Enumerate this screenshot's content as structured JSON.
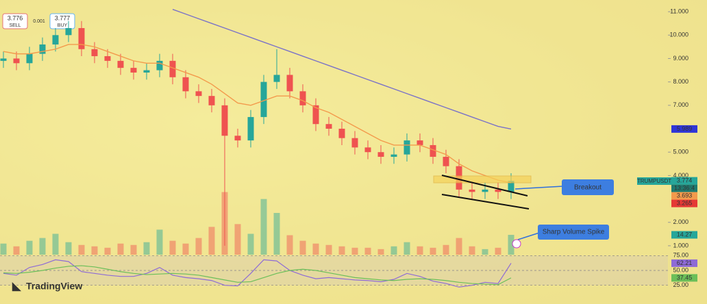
{
  "chart_data": [
    {
      "type": "candlestick",
      "open": [
        8.9,
        9.0,
        8.8,
        9.2,
        9.6,
        10.0,
        10.3,
        9.4,
        9.1,
        8.9,
        8.6,
        8.4,
        8.5,
        8.9,
        8.2,
        7.6,
        7.4,
        7.0,
        5.7,
        5.5,
        6.5,
        8.0,
        8.3,
        7.6,
        7.0,
        6.2,
        6.0,
        5.6,
        5.2,
        5.0,
        4.8,
        4.9,
        5.5,
        5.3,
        4.8,
        4.4,
        3.4,
        3.3,
        3.4,
        3.3
      ],
      "high": [
        9.3,
        9.3,
        9.5,
        9.9,
        10.3,
        10.6,
        10.6,
        9.7,
        9.4,
        9.2,
        8.9,
        8.8,
        9.2,
        9.2,
        8.5,
        7.9,
        7.7,
        7.3,
        6.0,
        6.8,
        8.3,
        9.4,
        8.6,
        7.9,
        7.3,
        6.5,
        6.3,
        5.9,
        5.5,
        5.3,
        5.2,
        5.8,
        5.8,
        5.6,
        5.1,
        4.7,
        3.7,
        3.7,
        3.7,
        4.1
      ],
      "low": [
        8.6,
        8.5,
        8.5,
        8.9,
        9.3,
        9.7,
        9.1,
        8.8,
        8.6,
        8.3,
        8.1,
        8.1,
        8.2,
        7.9,
        7.3,
        7.1,
        6.7,
        1.0,
        5.2,
        5.2,
        6.2,
        7.7,
        7.3,
        6.7,
        5.9,
        5.7,
        5.3,
        4.9,
        4.7,
        4.5,
        4.5,
        4.6,
        5.0,
        4.5,
        4.1,
        3.1,
        3.0,
        3.0,
        3.0,
        3.0
      ],
      "close": [
        9.0,
        8.8,
        9.2,
        9.6,
        10.0,
        10.3,
        9.4,
        9.1,
        8.9,
        8.6,
        8.4,
        8.5,
        8.9,
        8.2,
        7.6,
        7.4,
        7.0,
        5.7,
        5.5,
        6.5,
        8.0,
        8.3,
        7.6,
        7.0,
        6.2,
        6.0,
        5.6,
        5.2,
        5.0,
        4.8,
        4.9,
        5.5,
        5.3,
        4.8,
        4.4,
        3.4,
        3.3,
        3.4,
        3.3,
        3.774
      ],
      "up_color": "#26a69a",
      "down_color": "#ef5350",
      "series": [
        {
          "color": "#f39a4c",
          "values": [
            9.3,
            9.2,
            9.2,
            9.3,
            9.4,
            9.6,
            9.6,
            9.5,
            9.3,
            9.1,
            8.9,
            8.8,
            8.8,
            8.6,
            8.4,
            8.2,
            7.9,
            7.5,
            7.1,
            7.0,
            7.2,
            7.4,
            7.4,
            7.2,
            6.9,
            6.7,
            6.4,
            6.1,
            5.8,
            5.5,
            5.3,
            5.3,
            5.3,
            5.1,
            4.9,
            4.5,
            4.2,
            4.0,
            3.8,
            3.693
          ]
        },
        {
          "color": "#7a72c8",
          "values": [
            null,
            null,
            null,
            null,
            null,
            null,
            null,
            null,
            null,
            null,
            null,
            null,
            null,
            11.1,
            10.9,
            10.7,
            10.5,
            10.3,
            10.1,
            9.9,
            9.7,
            9.5,
            9.3,
            9.1,
            8.9,
            8.7,
            8.5,
            8.3,
            8.1,
            7.9,
            7.7,
            7.5,
            7.3,
            7.1,
            6.9,
            6.7,
            6.5,
            6.3,
            6.1,
            5.989
          ]
        }
      ],
      "ylim": [
        0.53,
        11.5
      ],
      "yticks": [
        {
          "value": 11,
          "label": "11.000"
        },
        {
          "value": 10,
          "label": "10.000"
        },
        {
          "value": 9,
          "label": "9.000"
        },
        {
          "value": 8,
          "label": "8.000"
        },
        {
          "value": 7,
          "label": "7.000"
        },
        {
          "value": 5,
          "label": "5.000"
        },
        {
          "value": 4,
          "label": "4.000"
        },
        {
          "value": 2,
          "label": "2.000"
        },
        {
          "value": 1,
          "label": "1.000"
        }
      ],
      "axis_tags": [
        {
          "value": 5.989,
          "label": "5.989",
          "color": "#2f35d8"
        },
        {
          "value": 3.774,
          "label": "3.774",
          "color": "#26a69a",
          "countdown": "13:36:4"
        },
        {
          "value": 3.693,
          "label": "3.693",
          "color": "#f39a4c"
        },
        {
          "value": 3.265,
          "label": "3.265",
          "color": "#e53935"
        }
      ],
      "symbol": "TRUMPUSDT"
    },
    {
      "type": "bar",
      "values": [
        8,
        6,
        10,
        12,
        15,
        9,
        7,
        6,
        5,
        8,
        7,
        9,
        18,
        10,
        8,
        12,
        20,
        45,
        22,
        15,
        40,
        30,
        14,
        10,
        8,
        7,
        6,
        5,
        5,
        4,
        6,
        9,
        6,
        5,
        7,
        12,
        6,
        4,
        5,
        14.27
      ],
      "ylim": [
        0,
        60
      ],
      "axis_tags": [
        {
          "value": 14.27,
          "label": "14.27",
          "color": "#26a69a"
        }
      ]
    },
    {
      "type": "line",
      "series": [
        {
          "color": "#8e6bd6",
          "values": [
            45,
            42,
            55,
            60,
            68,
            65,
            48,
            45,
            42,
            40,
            40,
            45,
            55,
            42,
            38,
            36,
            33,
            25,
            24,
            45,
            68,
            66,
            50,
            42,
            36,
            38,
            36,
            34,
            33,
            31,
            35,
            45,
            40,
            32,
            28,
            22,
            25,
            30,
            28,
            62.21
          ]
        },
        {
          "color": "#6bbf59",
          "values": [
            46,
            45,
            47,
            50,
            54,
            57,
            58,
            56,
            52,
            48,
            45,
            43,
            44,
            45,
            44,
            42,
            38,
            34,
            30,
            31,
            38,
            45,
            50,
            52,
            50,
            46,
            42,
            38,
            36,
            34,
            33,
            35,
            36,
            35,
            33,
            30,
            28,
            27,
            26,
            37.45
          ]
        }
      ],
      "ylim": [
        20,
        80
      ],
      "yticks": [
        {
          "value": 75,
          "label": "75.00"
        },
        {
          "value": 50,
          "label": "50.00"
        },
        {
          "value": 25,
          "label": "25.00"
        }
      ],
      "grid": true,
      "axis_tags": [
        {
          "value": 62.21,
          "label": "62.21",
          "color": "#8e6bd6"
        },
        {
          "value": 37.45,
          "label": "37.45",
          "color": "#6bbf59"
        }
      ]
    }
  ],
  "toolbar": {
    "sell_price": "3.776",
    "sell": "SELL",
    "spread": "0.001",
    "buy_price": "3.777",
    "buy": "BUY"
  },
  "annotations": {
    "breakout": "Breakout",
    "volume_spike": "Sharp Volume Spike"
  },
  "brand": "TradingView"
}
